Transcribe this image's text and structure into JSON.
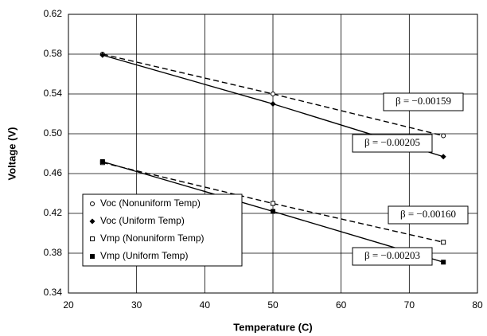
{
  "chart_data": {
    "type": "scatter",
    "x_label": "Temperature (C)",
    "y_label": "Voltage (V)",
    "xlim": [
      20,
      80
    ],
    "xticks": [
      20,
      30,
      40,
      50,
      60,
      70,
      80
    ],
    "ylim": [
      0.34,
      0.62
    ],
    "yticks": [
      0.34,
      0.38,
      0.42,
      0.46,
      {
        "value": 0.5,
        "label": "0.50"
      },
      0.54,
      0.58,
      0.62
    ],
    "grid": true,
    "legend": "lower left",
    "series": [
      {
        "name": "Voc (Nonuniform Temp)",
        "color": "#000000",
        "marker": "circle",
        "line": "dashed",
        "x": [
          25,
          50,
          75
        ],
        "values": [
          0.58,
          0.54,
          0.498
        ]
      },
      {
        "name": "Voc (Uniform Temp)",
        "color": "#000000",
        "marker": "diamond",
        "line": "solid",
        "x": [
          25,
          50,
          75
        ],
        "values": [
          0.579,
          0.53,
          0.477
        ]
      },
      {
        "name": "Vmp (Nonuniform Temp)",
        "color": "#000000",
        "marker": "square-open",
        "line": "dashed",
        "x": [
          25,
          50,
          75
        ],
        "values": [
          0.471,
          0.43,
          0.391
        ]
      },
      {
        "name": "Vmp (Uniform Temp)",
        "color": "#000000",
        "marker": "square",
        "line": "solid",
        "x": [
          25,
          50,
          75
        ],
        "values": [
          0.472,
          0.422,
          0.371
        ]
      }
    ],
    "annotations": [
      "β = −0.00159",
      "β = −0.00205",
      "β = −0.00160",
      "β = −0.00203"
    ]
  }
}
